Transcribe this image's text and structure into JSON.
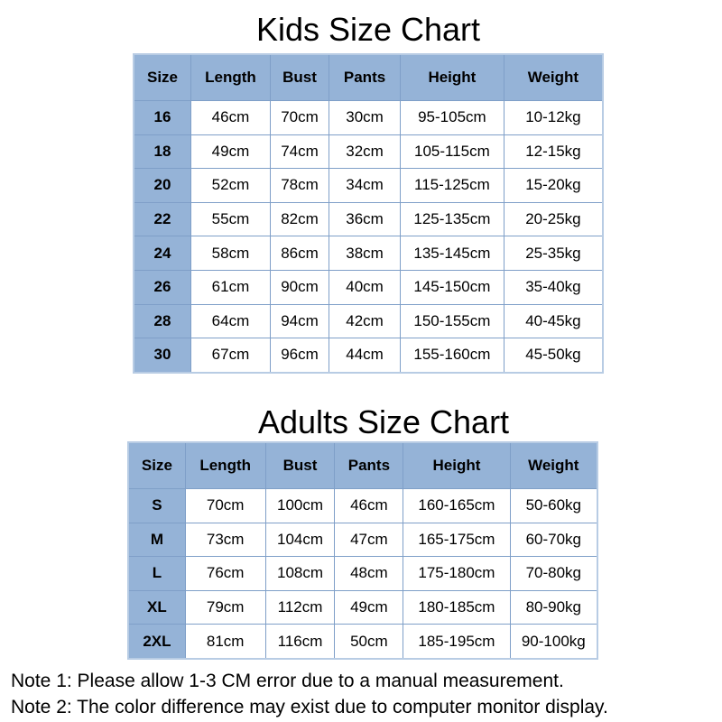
{
  "kids": {
    "title": "Kids Size Chart",
    "headers": [
      "Size",
      "Length",
      "Bust",
      "Pants",
      "Height",
      "Weight"
    ],
    "rows": [
      [
        "16",
        "46cm",
        "70cm",
        "30cm",
        "95-105cm",
        "10-12kg"
      ],
      [
        "18",
        "49cm",
        "74cm",
        "32cm",
        "105-115cm",
        "12-15kg"
      ],
      [
        "20",
        "52cm",
        "78cm",
        "34cm",
        "115-125cm",
        "15-20kg"
      ],
      [
        "22",
        "55cm",
        "82cm",
        "36cm",
        "125-135cm",
        "20-25kg"
      ],
      [
        "24",
        "58cm",
        "86cm",
        "38cm",
        "135-145cm",
        "25-35kg"
      ],
      [
        "26",
        "61cm",
        "90cm",
        "40cm",
        "145-150cm",
        "35-40kg"
      ],
      [
        "28",
        "64cm",
        "94cm",
        "42cm",
        "150-155cm",
        "40-45kg"
      ],
      [
        "30",
        "67cm",
        "96cm",
        "44cm",
        "155-160cm",
        "45-50kg"
      ]
    ]
  },
  "adults": {
    "title": "Adults Size Chart",
    "headers": [
      "Size",
      "Length",
      "Bust",
      "Pants",
      "Height",
      "Weight"
    ],
    "rows": [
      [
        "S",
        "70cm",
        "100cm",
        "46cm",
        "160-165cm",
        "50-60kg"
      ],
      [
        "M",
        "73cm",
        "104cm",
        "47cm",
        "165-175cm",
        "60-70kg"
      ],
      [
        "L",
        "76cm",
        "108cm",
        "48cm",
        "175-180cm",
        "70-80kg"
      ],
      [
        "XL",
        "79cm",
        "112cm",
        "49cm",
        "180-185cm",
        "80-90kg"
      ],
      [
        "2XL",
        "81cm",
        "116cm",
        "50cm",
        "185-195cm",
        "90-100kg"
      ]
    ]
  },
  "notes": [
    "Note 1: Please allow 1-3 CM error due to a manual measurement.",
    "Note 2: The color difference may exist due to computer monitor display."
  ],
  "colors": {
    "header_bg": "#95b3d7",
    "border": "#7f9fc8"
  }
}
